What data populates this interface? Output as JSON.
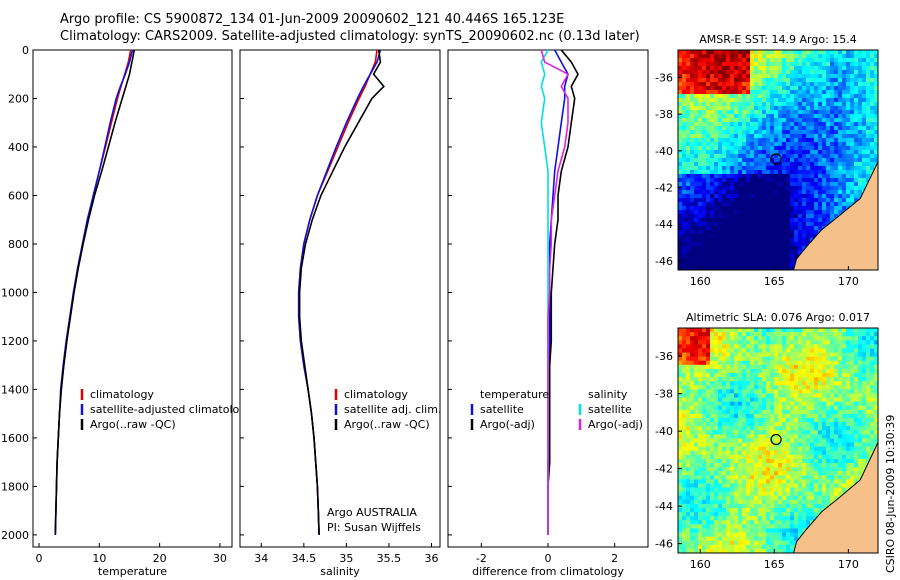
{
  "header": {
    "line1": "Argo profile: CS 5900872_134 01-Jun-2009 20090602_121 40.446S 165.123E",
    "line2": "Climatology: CARS2009. Satellite-adjusted climatology: synTS_20090602.nc (0.13d later)"
  },
  "side_label": "CSIRO 08-Jun-2009 10:30:39",
  "colors": {
    "red": "#e00000",
    "blue": "#1010e0",
    "black": "#000000",
    "cyan": "#00e0e0",
    "magenta": "#e020e0",
    "land": "#f5c08a"
  },
  "chart_data": [
    {
      "type": "line",
      "id": "temperature",
      "xlabel": "temperature",
      "xlim": [
        -1,
        32
      ],
      "ylim": [
        2050,
        0
      ],
      "xticks": [
        0,
        10,
        20,
        30
      ],
      "yticks": [
        0,
        200,
        400,
        600,
        800,
        1000,
        1200,
        1400,
        1600,
        1800,
        2000
      ],
      "depth": [
        0,
        50,
        100,
        150,
        200,
        300,
        400,
        500,
        600,
        700,
        800,
        900,
        1000,
        1100,
        1200,
        1300,
        1400,
        1500,
        1600,
        1700,
        1800,
        1900,
        2000
      ],
      "series": [
        {
          "name": "climatology",
          "color": "red",
          "values": [
            15.2,
            14.8,
            14.2,
            13.6,
            13.0,
            12.0,
            11.0,
            10.0,
            9.0,
            8.1,
            7.3,
            6.5,
            5.8,
            5.2,
            4.6,
            4.1,
            3.7,
            3.4,
            3.2,
            3.0,
            2.9,
            2.8,
            2.7
          ]
        },
        {
          "name": "satellite-adjusted climatology",
          "color": "blue",
          "values": [
            15.5,
            15.0,
            14.3,
            13.5,
            12.8,
            11.8,
            10.9,
            10.0,
            9.0,
            8.0,
            7.2,
            6.4,
            5.7,
            5.1,
            4.5,
            4.0,
            3.6,
            3.4,
            3.2,
            3.0,
            2.9,
            2.8,
            2.7
          ]
        },
        {
          "name": "Argo(..raw -QC)",
          "color": "black",
          "values": [
            15.8,
            15.4,
            15.0,
            14.4,
            13.8,
            12.6,
            11.5,
            10.4,
            9.2,
            8.2,
            7.3,
            6.5,
            5.8,
            5.2,
            4.6,
            4.1,
            3.7,
            3.4,
            3.2,
            3.0,
            2.9,
            2.8,
            2.7
          ]
        }
      ],
      "legend": [
        "climatology",
        "satellite-adjusted climatology",
        "Argo(..raw -QC)"
      ]
    },
    {
      "type": "line",
      "id": "salinity",
      "xlabel": "salinity",
      "xlim": [
        33.75,
        36.1
      ],
      "ylim": [
        2050,
        0
      ],
      "xticks": [
        34,
        34.5,
        35,
        35.5,
        36
      ],
      "depth": [
        0,
        50,
        100,
        150,
        200,
        300,
        400,
        500,
        600,
        700,
        800,
        900,
        1000,
        1100,
        1200,
        1300,
        1400,
        1500,
        1600,
        1700,
        1800,
        1900,
        2000
      ],
      "series": [
        {
          "name": "climatology",
          "color": "red",
          "values": [
            35.36,
            35.34,
            35.28,
            35.22,
            35.15,
            35.02,
            34.9,
            34.78,
            34.66,
            34.57,
            34.5,
            34.46,
            34.44,
            34.44,
            34.46,
            34.5,
            34.55,
            34.59,
            34.62,
            34.64,
            34.66,
            34.67,
            34.68
          ]
        },
        {
          "name": "satellite adj. clim.",
          "color": "blue",
          "values": [
            35.4,
            35.36,
            35.28,
            35.2,
            35.13,
            35.0,
            34.88,
            34.77,
            34.66,
            34.57,
            34.5,
            34.46,
            34.44,
            34.44,
            34.46,
            34.5,
            34.55,
            34.59,
            34.62,
            34.64,
            34.66,
            34.67,
            34.68
          ]
        },
        {
          "name": "Argo(..raw -QC)",
          "color": "black",
          "values": [
            35.38,
            35.4,
            35.32,
            35.44,
            35.3,
            35.14,
            34.98,
            34.84,
            34.7,
            34.6,
            34.52,
            34.47,
            34.45,
            34.45,
            34.47,
            34.51,
            34.55,
            34.59,
            34.62,
            34.64,
            34.66,
            34.67,
            34.68
          ]
        }
      ],
      "legend": [
        "climatology",
        "satellite adj. clim.",
        "Argo(..raw -QC)"
      ],
      "annotation": [
        "Argo AUSTRALIA",
        "PI: Susan Wijffels"
      ]
    },
    {
      "type": "line",
      "id": "difference",
      "xlabel": "difference from climatology",
      "xlim": [
        -3,
        3
      ],
      "ylim": [
        2050,
        0
      ],
      "xticks": [
        -2,
        0,
        2
      ],
      "depth": [
        0,
        50,
        100,
        150,
        200,
        300,
        400,
        500,
        600,
        700,
        800,
        900,
        1000,
        1100,
        1200,
        1300,
        1400,
        1500,
        1600,
        1700,
        1800,
        1900,
        2000
      ],
      "series": [
        {
          "name": "temperature satellite",
          "color": "blue",
          "values": [
            0.2,
            0.4,
            0.6,
            0.5,
            0.5,
            0.4,
            0.3,
            0.2,
            0.15,
            0.1,
            0.05,
            0.05,
            0.05,
            0.05,
            0.05,
            0.05,
            0.05,
            0.05,
            0.05,
            0.0,
            0.0,
            0.0,
            0.0
          ]
        },
        {
          "name": "temperature Argo(-adj)",
          "color": "black",
          "values": [
            0.4,
            0.7,
            0.9,
            0.7,
            0.8,
            0.7,
            0.6,
            0.4,
            0.3,
            0.3,
            0.2,
            0.15,
            0.1,
            0.1,
            0.1,
            0.05,
            0.05,
            0.05,
            0.05,
            0.05,
            0.0,
            0.0,
            0.0
          ]
        },
        {
          "name": "salinity satellite",
          "color": "cyan",
          "values": [
            0.0,
            -0.2,
            -0.1,
            -0.2,
            -0.1,
            -0.2,
            -0.1,
            0.0,
            0.0,
            0.0,
            0.0,
            0.0,
            0.0,
            0.0,
            0.0,
            0.0,
            0.0,
            0.0,
            0.0,
            0.0,
            0.0,
            0.0,
            0.0
          ]
        },
        {
          "name": "salinity Argo(-adj)",
          "color": "magenta",
          "values": [
            -0.2,
            -0.1,
            0.6,
            0.4,
            0.6,
            0.6,
            0.5,
            0.3,
            0.2,
            0.1,
            0.1,
            0.05,
            0.05,
            0.0,
            0.0,
            0.0,
            0.0,
            0.0,
            0.0,
            0.0,
            0.0,
            0.0,
            0.0
          ]
        }
      ],
      "legend": [
        "temperature",
        "satellite",
        "Argo(-adj)",
        "salinity",
        "satellite",
        "Argo(-adj)"
      ]
    },
    {
      "type": "heatmap",
      "id": "sst-map",
      "title": "AMSR-E SST: 14.9 Argo: 15.4",
      "xlim": [
        158.5,
        172
      ],
      "ylim": [
        -46.5,
        -34.5
      ],
      "xticks": [
        160,
        165,
        170
      ],
      "yticks": [
        -36,
        -38,
        -40,
        -42,
        -44,
        -46
      ],
      "marker": {
        "lon": 165.123,
        "lat": -40.446
      }
    },
    {
      "type": "heatmap",
      "id": "sla-map",
      "title": "Altimetric SLA: 0.076 Argo: 0.017",
      "xlim": [
        158.5,
        172
      ],
      "ylim": [
        -46.5,
        -34.5
      ],
      "xticks": [
        160,
        165,
        170
      ],
      "yticks": [
        -36,
        -38,
        -40,
        -42,
        -44,
        -46
      ],
      "marker": {
        "lon": 165.123,
        "lat": -40.446
      }
    }
  ]
}
